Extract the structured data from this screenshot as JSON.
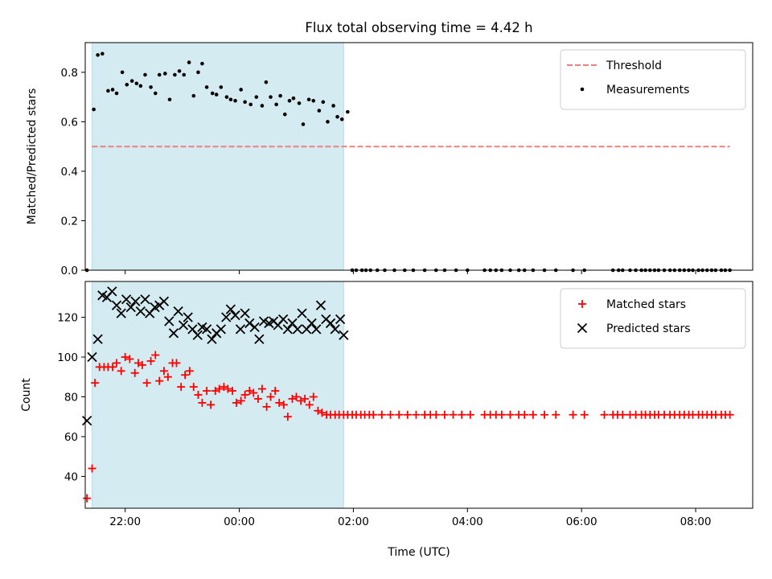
{
  "chart_data": [
    {
      "type": "scatter",
      "title": "Flux total observing time = 4.42 h",
      "ylabel": "Matched/Predicted stars",
      "xlabel": "",
      "xlim": [
        -2.7,
        9.0
      ],
      "ylim": [
        0.0,
        0.92
      ],
      "xticks": [
        -2,
        0,
        2,
        4,
        6,
        8
      ],
      "xtick_labels": [
        "",
        "",
        "",
        "",
        "",
        ""
      ],
      "yticks": [
        0.0,
        0.2,
        0.4,
        0.6,
        0.8
      ],
      "ytick_labels": [
        "0.0",
        "0.2",
        "0.4",
        "0.6",
        "0.8"
      ],
      "shaded_span": [
        -2.58,
        1.83
      ],
      "shaded_color": "#d3ebf1",
      "legend": "top-right",
      "threshold": {
        "name": "Threshold",
        "y": 0.5,
        "x": [
          -2.58,
          8.6
        ],
        "color": "#f08080"
      },
      "series": [
        {
          "name": "Measurements",
          "color": "#000000",
          "x": [
            -2.67,
            -2.55,
            -2.48,
            -2.4,
            -2.3,
            -2.22,
            -2.15,
            -2.05,
            -1.97,
            -1.88,
            -1.8,
            -1.73,
            -1.65,
            -1.55,
            -1.47,
            -1.4,
            -1.3,
            -1.22,
            -1.13,
            -1.05,
            -0.97,
            -0.88,
            -0.8,
            -0.72,
            -0.65,
            -0.57,
            -0.47,
            -0.4,
            -0.32,
            -0.22,
            -0.15,
            -0.07,
            0.03,
            0.1,
            0.2,
            0.3,
            0.4,
            0.47,
            0.55,
            0.65,
            0.72,
            0.8,
            0.88,
            0.95,
            1.05,
            1.12,
            1.22,
            1.3,
            1.4,
            1.47,
            1.55,
            1.65,
            1.72,
            1.8,
            1.9,
            1.98,
            2.05,
            2.15,
            2.22,
            2.3,
            2.42,
            2.55,
            2.72,
            2.9,
            3.05,
            3.25,
            3.45,
            3.6,
            3.8,
            4.0,
            4.3,
            4.4,
            4.5,
            4.6,
            4.75,
            4.9,
            5.0,
            5.15,
            5.35,
            5.55,
            5.85,
            6.05,
            6.55,
            6.65,
            6.72,
            6.85,
            6.95,
            7.05,
            7.12,
            7.2,
            7.28,
            7.35,
            7.45,
            7.55,
            7.63,
            7.72,
            7.8,
            7.88,
            7.95,
            8.05,
            8.12,
            8.2,
            8.28,
            8.35,
            8.45,
            8.52,
            8.6
          ],
          "y": [
            0.0,
            0.65,
            0.87,
            0.875,
            0.725,
            0.73,
            0.715,
            0.8,
            0.75,
            0.765,
            0.755,
            0.745,
            0.79,
            0.74,
            0.715,
            0.79,
            0.795,
            0.69,
            0.79,
            0.805,
            0.79,
            0.84,
            0.705,
            0.8,
            0.835,
            0.74,
            0.715,
            0.71,
            0.74,
            0.7,
            0.69,
            0.685,
            0.73,
            0.68,
            0.67,
            0.7,
            0.665,
            0.76,
            0.7,
            0.67,
            0.705,
            0.63,
            0.685,
            0.695,
            0.675,
            0.59,
            0.69,
            0.685,
            0.645,
            0.68,
            0.6,
            0.665,
            0.62,
            0.61,
            0.64,
            0.0,
            0.0,
            0.0,
            0.0,
            0.0,
            0.0,
            0.0,
            0.0,
            0.0,
            0.0,
            0.0,
            0.0,
            0.0,
            0.0,
            0.0,
            0.0,
            0.0,
            0.0,
            0.0,
            0.0,
            0.0,
            0.0,
            0.0,
            0.0,
            0.0,
            0.0,
            0.0,
            0.0,
            0.0,
            0.0,
            0.0,
            0.0,
            0.0,
            0.0,
            0.0,
            0.0,
            0.0,
            0.0,
            0.0,
            0.0,
            0.0,
            0.0,
            0.0,
            0.0,
            0.0,
            0.0,
            0.0,
            0.0,
            0.0,
            0.0,
            0.0,
            0.0
          ]
        }
      ]
    },
    {
      "type": "scatter",
      "title": "",
      "ylabel": "Count",
      "xlabel": "Time (UTC)",
      "xlim": [
        -2.7,
        9.0
      ],
      "ylim": [
        24,
        138
      ],
      "xticks": [
        -2,
        0,
        2,
        4,
        6,
        8
      ],
      "xtick_labels": [
        "22:00",
        "00:00",
        "02:00",
        "04:00",
        "06:00",
        "08:00"
      ],
      "yticks": [
        40,
        60,
        80,
        100,
        120
      ],
      "ytick_labels": [
        "40",
        "60",
        "80",
        "100",
        "120"
      ],
      "shaded_span": [
        -2.58,
        1.83
      ],
      "shaded_color": "#d3ebf1",
      "legend": "top-right",
      "series": [
        {
          "name": "Matched stars",
          "marker": "plus",
          "color": "#ff0000",
          "x": [
            -2.67,
            -2.58,
            -2.53,
            -2.45,
            -2.37,
            -2.3,
            -2.22,
            -2.15,
            -2.07,
            -2.0,
            -1.92,
            -1.83,
            -1.77,
            -1.7,
            -1.62,
            -1.55,
            -1.47,
            -1.4,
            -1.32,
            -1.25,
            -1.17,
            -1.1,
            -1.02,
            -0.95,
            -0.87,
            -0.8,
            -0.72,
            -0.65,
            -0.57,
            -0.5,
            -0.42,
            -0.35,
            -0.27,
            -0.2,
            -0.12,
            -0.05,
            0.03,
            0.1,
            0.18,
            0.25,
            0.33,
            0.4,
            0.48,
            0.55,
            0.63,
            0.7,
            0.78,
            0.85,
            0.93,
            1.0,
            1.08,
            1.15,
            1.23,
            1.3,
            1.38,
            1.45,
            1.53,
            1.6,
            1.68,
            1.75,
            1.83,
            1.9,
            1.98,
            2.05,
            2.13,
            2.2,
            2.28,
            2.35,
            2.5,
            2.65,
            2.8,
            2.95,
            3.1,
            3.25,
            3.35,
            3.45,
            3.6,
            3.75,
            3.9,
            4.05,
            4.3,
            4.4,
            4.5,
            4.6,
            4.75,
            4.9,
            5.0,
            5.15,
            5.35,
            5.55,
            5.85,
            6.05,
            6.4,
            6.55,
            6.63,
            6.72,
            6.85,
            6.95,
            7.05,
            7.12,
            7.2,
            7.28,
            7.35,
            7.45,
            7.55,
            7.63,
            7.72,
            7.8,
            7.88,
            7.95,
            8.05,
            8.12,
            8.2,
            8.28,
            8.35,
            8.45,
            8.52,
            8.6
          ],
          "y": [
            29,
            44,
            87,
            95,
            95,
            95,
            95,
            97,
            93,
            100,
            99,
            92,
            97,
            96,
            87,
            98,
            101,
            88,
            93,
            90,
            97,
            97,
            85,
            91,
            93,
            85,
            81,
            77,
            83,
            76,
            83,
            84,
            85,
            84,
            83,
            77,
            78,
            81,
            83,
            82,
            79,
            84,
            75,
            80,
            83,
            77,
            76,
            70,
            79,
            80,
            78,
            79,
            76,
            80,
            73,
            72,
            71,
            71,
            71,
            71,
            71,
            71,
            71,
            71,
            71,
            71,
            71,
            71,
            71,
            71,
            71,
            71,
            71,
            71,
            71,
            71,
            71,
            71,
            71,
            71,
            71,
            71,
            71,
            71,
            71,
            71,
            71,
            71,
            71,
            71,
            71,
            71,
            71,
            71,
            71,
            71,
            71,
            71,
            71,
            71,
            71,
            71,
            71,
            71,
            71,
            71,
            71,
            71,
            71,
            71,
            71,
            71,
            71,
            71,
            71,
            71,
            71,
            71
          ]
        },
        {
          "name": "Predicted stars",
          "marker": "x",
          "color": "#000000",
          "x": [
            -2.67,
            -2.58,
            -2.48,
            -2.4,
            -2.32,
            -2.23,
            -2.15,
            -2.07,
            -1.98,
            -1.9,
            -1.82,
            -1.73,
            -1.65,
            -1.57,
            -1.48,
            -1.4,
            -1.32,
            -1.23,
            -1.15,
            -1.07,
            -0.98,
            -0.9,
            -0.82,
            -0.73,
            -0.65,
            -0.57,
            -0.48,
            -0.4,
            -0.32,
            -0.23,
            -0.15,
            -0.07,
            0.02,
            0.1,
            0.18,
            0.27,
            0.35,
            0.43,
            0.52,
            0.6,
            0.68,
            0.77,
            0.85,
            0.93,
            1.02,
            1.1,
            1.18,
            1.27,
            1.35,
            1.43,
            1.52,
            1.6,
            1.68,
            1.77,
            1.83
          ],
          "y": [
            68,
            100,
            109,
            131,
            130,
            133,
            126,
            122,
            129,
            125,
            128,
            123,
            129,
            122,
            125,
            126,
            128,
            118,
            112,
            123,
            116,
            120,
            114,
            111,
            115,
            114,
            109,
            112,
            114,
            120,
            124,
            121,
            114,
            122,
            117,
            115,
            109,
            118,
            117,
            118,
            116,
            119,
            114,
            117,
            114,
            122,
            114,
            117,
            114,
            126,
            119,
            117,
            114,
            119,
            111
          ]
        }
      ]
    }
  ]
}
